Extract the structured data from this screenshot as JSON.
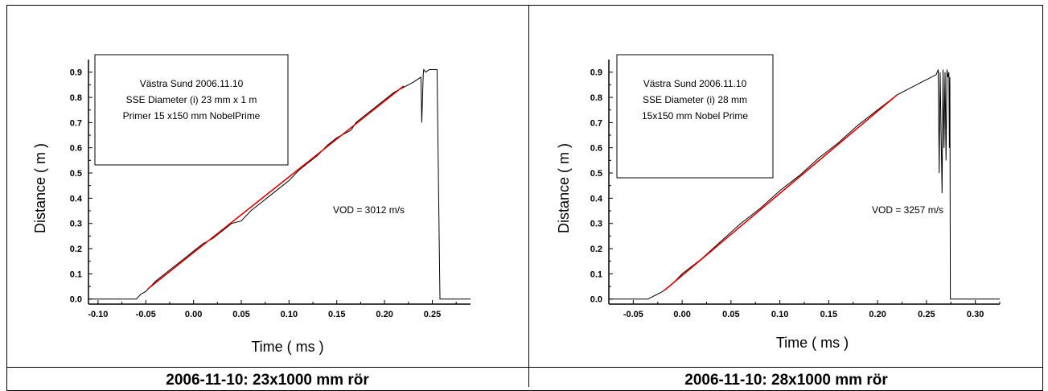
{
  "captions": {
    "left": "2006-11-10: 23x1000 mm rör",
    "right": "2006-11-10: 28x1000 mm rör"
  },
  "chart_data": [
    {
      "type": "line",
      "xlabel": "Time ( ms )",
      "ylabel": "Distance ( m )",
      "xlim": [
        -0.11,
        0.29
      ],
      "ylim": [
        -0.02,
        0.95
      ],
      "xticks": [
        "-0.10",
        "-0.05",
        "0.00",
        "0.05",
        "0.10",
        "0.15",
        "0.20",
        "0.25"
      ],
      "yticks": [
        "0.0",
        "0.1",
        "0.2",
        "0.3",
        "0.4",
        "0.5",
        "0.6",
        "0.7",
        "0.8",
        "0.9"
      ],
      "annotation_lines": [
        "Västra Sund 2006.11.10",
        "SSE Diameter (i) 23 mm x 1 m",
        "Primer 15 x150 mm NobelPrime"
      ],
      "vod_label": "VOD = 3012 m/s",
      "series": [
        {
          "color": "#000000",
          "x": [
            -0.11,
            -0.06,
            -0.055,
            -0.05,
            -0.045,
            -0.04,
            -0.03,
            -0.02,
            -0.01,
            0.0,
            0.01,
            0.02,
            0.03,
            0.04,
            0.05,
            0.06,
            0.07,
            0.08,
            0.09,
            0.1,
            0.11,
            0.12,
            0.13,
            0.14,
            0.15,
            0.16,
            0.165,
            0.17,
            0.18,
            0.19,
            0.2,
            0.21,
            0.22,
            0.23,
            0.238,
            0.239,
            0.2405,
            0.241,
            0.243,
            0.247,
            0.251,
            0.255,
            0.258,
            0.29
          ],
          "y": [
            0.0,
            0.0,
            0.02,
            0.03,
            0.05,
            0.07,
            0.1,
            0.13,
            0.16,
            0.19,
            0.22,
            0.24,
            0.27,
            0.3,
            0.31,
            0.35,
            0.38,
            0.41,
            0.44,
            0.47,
            0.51,
            0.54,
            0.57,
            0.61,
            0.64,
            0.66,
            0.67,
            0.7,
            0.73,
            0.76,
            0.79,
            0.82,
            0.84,
            0.86,
            0.88,
            0.7,
            0.89,
            0.91,
            0.9,
            0.91,
            0.91,
            0.91,
            0.0,
            0.0
          ]
        },
        {
          "color": "#e00000",
          "x": [
            -0.048,
            0.22
          ],
          "y": [
            0.04,
            0.845
          ]
        }
      ]
    },
    {
      "type": "line",
      "xlabel": "Time ( ms )",
      "ylabel": "Distance ( m )",
      "xlim": [
        -0.075,
        0.325
      ],
      "ylim": [
        -0.02,
        0.95
      ],
      "xticks": [
        "-0.05",
        "0.00",
        "0.05",
        "0.10",
        "0.15",
        "0.20",
        "0.25",
        "0.30"
      ],
      "yticks": [
        "0.0",
        "0.1",
        "0.2",
        "0.3",
        "0.4",
        "0.5",
        "0.6",
        "0.7",
        "0.8",
        "0.9"
      ],
      "annotation_lines": [
        "Västra Sund 2006.11.10",
        "SSE Diameter (i) 28 mm",
        "15x150 mm Nobel Prime"
      ],
      "vod_label": "VOD = 3257 m/s",
      "series": [
        {
          "color": "#000000",
          "x": [
            -0.075,
            -0.035,
            -0.03,
            -0.025,
            -0.02,
            -0.01,
            0.0,
            0.02,
            0.04,
            0.06,
            0.08,
            0.1,
            0.12,
            0.14,
            0.16,
            0.18,
            0.2,
            0.22,
            0.24,
            0.26,
            0.262,
            0.263,
            0.264,
            0.266,
            0.267,
            0.268,
            0.269,
            0.27,
            0.271,
            0.272,
            0.273,
            0.2735,
            0.274,
            0.2745,
            0.325
          ],
          "y": [
            0.0,
            0.0,
            0.01,
            0.02,
            0.03,
            0.06,
            0.1,
            0.16,
            0.23,
            0.3,
            0.36,
            0.43,
            0.49,
            0.56,
            0.62,
            0.69,
            0.75,
            0.81,
            0.85,
            0.89,
            0.91,
            0.5,
            0.9,
            0.42,
            0.91,
            0.6,
            0.9,
            0.55,
            0.91,
            0.88,
            0.9,
            0.6,
            0.88,
            0.0,
            0.0
          ]
        },
        {
          "color": "#e00000",
          "x": [
            -0.018,
            0.22
          ],
          "y": [
            0.035,
            0.81
          ]
        }
      ]
    }
  ]
}
